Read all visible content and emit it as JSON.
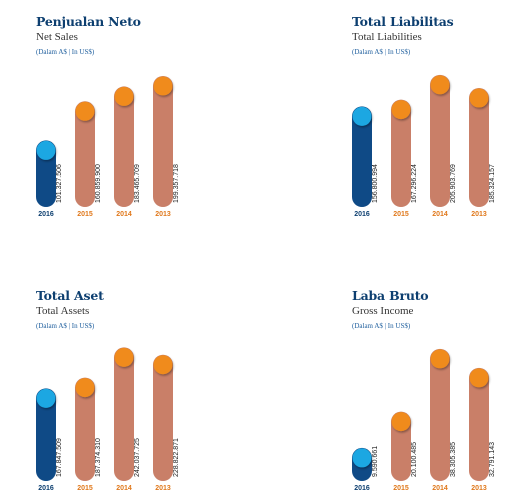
{
  "colors": {
    "current_bar": "#0f4a86",
    "current_cap": "#1ea7e2",
    "past_bar": "#c97f68",
    "past_cap": "#f08b1d",
    "past_label": "#e0781b",
    "title": "#0d3f70"
  },
  "panels": [
    {
      "title": "Penjualan Neto",
      "subtitle": "Net Sales",
      "unit": "(Dalam A$ | In US$)"
    },
    {
      "title": "Total Liabilitas",
      "subtitle": "Total Liabilities",
      "unit": "(Dalam A$ | In US$)"
    },
    {
      "title": "Total Aset",
      "subtitle": "Total Assets",
      "unit": "(Dalam A$ | In US$)"
    },
    {
      "title": "Laba Bruto",
      "subtitle": "Gross Income",
      "unit": "(Dalam A$ | In US$)"
    }
  ],
  "chart_data": [
    {
      "type": "bar",
      "title": "Penjualan Neto",
      "subtitle": "Net Sales",
      "unit": "(Dalam A$ | In US$)",
      "categories": [
        "2016",
        "2015",
        "2014",
        "2013"
      ],
      "values": [
        101327506,
        160859900,
        183465709,
        199357718
      ],
      "value_labels": [
        "101.327.506",
        "160.859.900",
        "183.465.709",
        "199.357.718"
      ],
      "ylim": [
        0,
        210000000
      ]
    },
    {
      "type": "bar",
      "title": "Total Liabilitas",
      "subtitle": "Total Liabilities",
      "unit": "(Dalam A$ | In US$)",
      "categories": [
        "2016",
        "2015",
        "2014",
        "2013"
      ],
      "values": [
        156800994,
        167296224,
        205903769,
        185324157
      ],
      "value_labels": [
        "156.800.994",
        "167.296.224",
        "205.903.769",
        "185.324.157"
      ],
      "ylim": [
        0,
        215000000
      ]
    },
    {
      "type": "bar",
      "title": "Total Aset",
      "subtitle": "Total Assets",
      "unit": "(Dalam A$ | In US$)",
      "categories": [
        "2016",
        "2015",
        "2014",
        "2013"
      ],
      "values": [
        167847509,
        187374310,
        242037725,
        228822871
      ],
      "value_labels": [
        "167.847.509",
        "187.374.310",
        "242.037.725",
        "228.822.871"
      ],
      "ylim": [
        0,
        250000000
      ]
    },
    {
      "type": "bar",
      "title": "Laba Bruto",
      "subtitle": "Gross Income",
      "unit": "(Dalam A$ | In US$)",
      "categories": [
        "2016",
        "2015",
        "2014",
        "2013"
      ],
      "values": [
        9590661,
        20100485,
        38305385,
        32791143
      ],
      "value_labels": [
        "9.590.661",
        "20.100.485",
        "38.305.385",
        "32.791.143"
      ],
      "ylim": [
        0,
        40000000
      ]
    }
  ]
}
